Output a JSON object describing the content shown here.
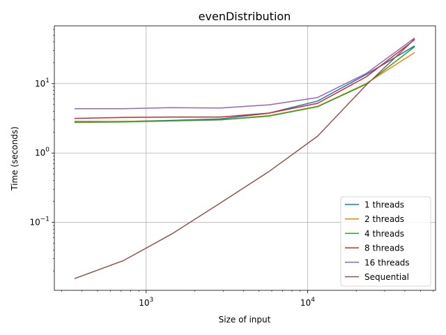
{
  "chart_data": {
    "type": "line",
    "title": "evenDistribution",
    "xlabel": "Size of input",
    "ylabel": "Time (seconds)",
    "xscale": "log",
    "yscale": "log",
    "xlim": [
      270,
      62000
    ],
    "ylim": [
      0.0105,
      68
    ],
    "grid": true,
    "legend_position": "lower right",
    "x_ticks": [
      {
        "value": 1000,
        "base": "10",
        "exp": "3"
      },
      {
        "value": 10000,
        "base": "10",
        "exp": "4"
      }
    ],
    "y_ticks": [
      {
        "value": 0.1,
        "base": "10",
        "exp": "−1"
      },
      {
        "value": 1,
        "base": "10",
        "exp": "0"
      },
      {
        "value": 10,
        "base": "10",
        "exp": "1"
      }
    ],
    "x": [
      360,
      720,
      1440,
      2880,
      5760,
      11520,
      23040,
      46080
    ],
    "series": [
      {
        "name": "1 threads",
        "color": "#1f77b4",
        "values": [
          2.85,
          2.85,
          2.95,
          3.1,
          3.75,
          5.6,
          13.5,
          35.0
        ]
      },
      {
        "name": "2 threads",
        "color": "#ff7f0e",
        "values": [
          2.8,
          2.85,
          2.9,
          3.0,
          3.45,
          4.7,
          10.0,
          28.0
        ]
      },
      {
        "name": "4 threads",
        "color": "#2ca02c",
        "values": [
          2.75,
          2.8,
          2.9,
          3.0,
          3.4,
          4.65,
          9.8,
          34.0
        ]
      },
      {
        "name": "8 threads",
        "color": "#d62728",
        "values": [
          3.15,
          3.25,
          3.3,
          3.3,
          3.75,
          5.2,
          12.5,
          43.0
        ]
      },
      {
        "name": "16 threads",
        "color": "#9467bd",
        "values": [
          4.35,
          4.35,
          4.5,
          4.45,
          4.95,
          6.3,
          14.0,
          45.5
        ]
      },
      {
        "name": "Sequential",
        "color": "#8c564b",
        "values": [
          0.0155,
          0.028,
          0.068,
          0.19,
          0.54,
          1.75,
          9.5,
          44.0
        ]
      }
    ]
  }
}
